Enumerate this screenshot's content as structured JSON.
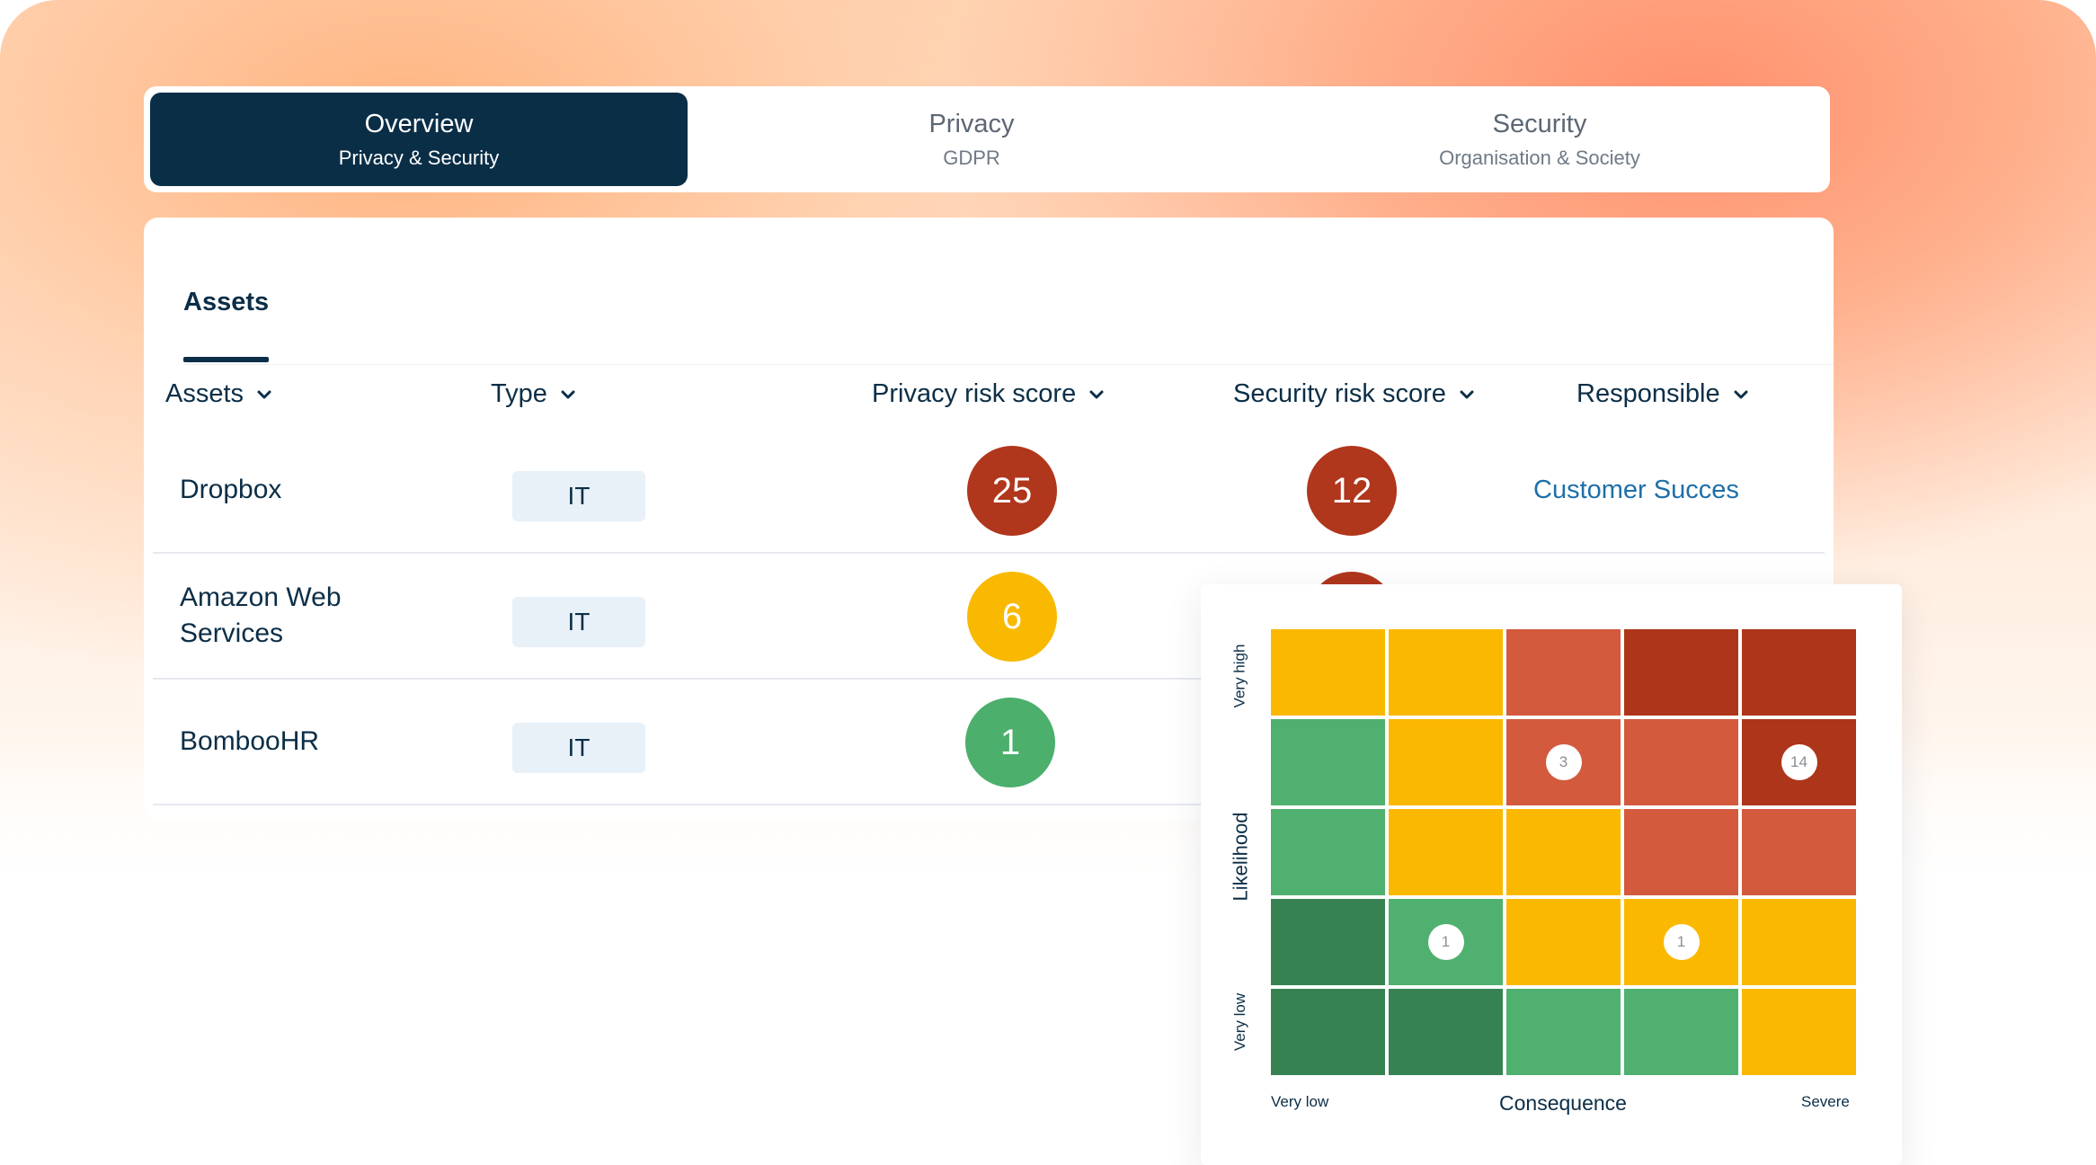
{
  "tabs": [
    {
      "title": "Overview",
      "subtitle": "Privacy & Security",
      "active": true
    },
    {
      "title": "Privacy",
      "subtitle": "GDPR",
      "active": false
    },
    {
      "title": "Security",
      "subtitle": "Organisation & Society",
      "active": false
    }
  ],
  "assets_card": {
    "tab_label": "Assets",
    "columns": [
      "Assets",
      "Type",
      "Privacy risk score",
      "Security risk score",
      "Responsible"
    ],
    "rows": [
      {
        "name": "Dropbox",
        "type": "IT",
        "privacy_score": "25",
        "privacy_color": "#b0361c",
        "security_score": "12",
        "security_color": "#b0361c",
        "responsible": "Customer Succes"
      },
      {
        "name": "Amazon Web Services",
        "type": "IT",
        "privacy_score": "6",
        "privacy_color": "#f9b900",
        "security_color": "#b0361c"
      },
      {
        "name": "BombooHR",
        "type": "IT",
        "privacy_score": "1",
        "privacy_color": "#4caf6c"
      }
    ]
  },
  "risk_matrix": {
    "y_axis": {
      "label": "Likelihood",
      "high": "Very high",
      "low": "Very low"
    },
    "x_axis": {
      "label": "Consequence",
      "low": "Very low",
      "high": "Severe"
    },
    "colors": {
      "dark_red": "#ad3519",
      "red": "#d35a3d",
      "yellow": "#fbb800",
      "green": "#50b06f",
      "dark_green": "#378253"
    },
    "cells": [
      [
        "yellow",
        "yellow",
        "red",
        "dark_red",
        "dark_red"
      ],
      [
        "green",
        "yellow",
        "red",
        "red",
        "dark_red"
      ],
      [
        "green",
        "yellow",
        "yellow",
        "red",
        "red"
      ],
      [
        "dark_green",
        "green",
        "yellow",
        "yellow",
        "yellow"
      ],
      [
        "dark_green",
        "dark_green",
        "green",
        "green",
        "yellow"
      ]
    ],
    "badges": [
      {
        "row": 1,
        "col": 2,
        "value": "3"
      },
      {
        "row": 1,
        "col": 4,
        "value": "14"
      },
      {
        "row": 3,
        "col": 1,
        "value": "1"
      },
      {
        "row": 3,
        "col": 3,
        "value": "1"
      }
    ]
  }
}
